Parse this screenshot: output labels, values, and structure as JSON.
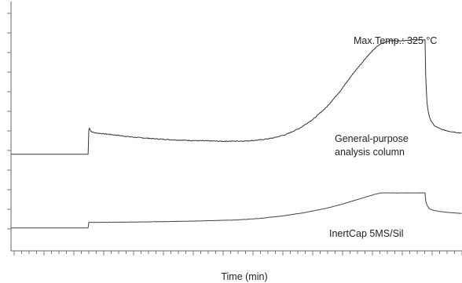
{
  "chart_data": {
    "type": "line",
    "title": "",
    "xlabel": "Time (min)",
    "ylabel": "",
    "grid": false,
    "legend": "none",
    "xlim": [
      0,
      100
    ],
    "ylim": [
      0,
      100
    ],
    "x_minor_tick_count": 61,
    "y_tick_count": 12,
    "annotations": [
      {
        "id": "max-temp",
        "lines": [
          "Max.Temp.: 325 °C"
        ]
      },
      {
        "id": "general",
        "lines": [
          "General-purpose",
          "analysis column"
        ]
      },
      {
        "id": "inertcap",
        "lines": [
          "InertCap 5MS/Sil"
        ]
      }
    ],
    "series": [
      {
        "key": "general-purpose",
        "color": "#333333",
        "noise": 0.35,
        "x": [
          0,
          17.1,
          17.15,
          17.3,
          17.7,
          18.5,
          20,
          23,
          27,
          32,
          37,
          42,
          47,
          52,
          55,
          58,
          61,
          64,
          67,
          70,
          73,
          76,
          79,
          81,
          82,
          83,
          84,
          85,
          87,
          89,
          91,
          91.8,
          91.9,
          92.2,
          92.6,
          93.2,
          94,
          95.5,
          97,
          99,
          100
        ],
        "y": [
          40.0,
          40.0,
          47.0,
          51.5,
          49.5,
          48.9,
          48.6,
          48.0,
          47.1,
          46.4,
          45.9,
          45.6,
          45.4,
          45.5,
          45.9,
          46.7,
          48.2,
          50.8,
          54.5,
          59.6,
          66.2,
          73.8,
          80.6,
          84.4,
          85.8,
          86.5,
          87.1,
          87.0,
          87.1,
          87.4,
          87.4,
          87.4,
          75.0,
          62.0,
          56.5,
          53.5,
          51.6,
          50.3,
          49.6,
          49.0,
          48.8
        ]
      },
      {
        "key": "inertcap",
        "color": "#444444",
        "noise": 0.1,
        "x": [
          0,
          17.1,
          17.2,
          20,
          30,
          40,
          50,
          55,
          60,
          65,
          70,
          73,
          76,
          79,
          81,
          82,
          84,
          86,
          88,
          91,
          91.8,
          91.9,
          92.3,
          92.8,
          93.5,
          95,
          97,
          100
        ],
        "y": [
          9.5,
          9.5,
          11.8,
          11.8,
          12.0,
          12.3,
          12.8,
          13.4,
          14.4,
          15.8,
          17.7,
          19.1,
          20.8,
          22.5,
          23.6,
          24.0,
          24.0,
          24.0,
          24.0,
          24.0,
          24.0,
          21.0,
          18.6,
          17.4,
          16.9,
          16.3,
          15.9,
          15.5
        ]
      }
    ]
  }
}
